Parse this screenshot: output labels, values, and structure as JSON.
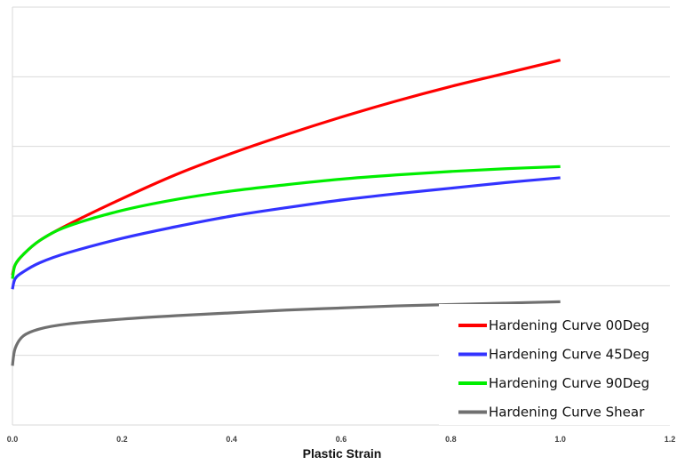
{
  "chart_data": {
    "type": "line",
    "title": "",
    "xlabel": "Plastic Strain",
    "ylabel": "",
    "xlim": [
      0.0,
      1.2
    ],
    "ylim": [
      0,
      6
    ],
    "x_ticks": [
      "0.0",
      "0.2",
      "0.4",
      "0.6",
      "0.8",
      "1.0",
      "1.2"
    ],
    "y_tick_labels_visible": false,
    "grid": "horizontal",
    "legend_position": "bottom-right",
    "series": [
      {
        "name": "Hardening Curve 00Deg",
        "color": "#ff0000",
        "x": [
          0,
          0.005,
          0.02,
          0.05,
          0.1,
          0.2,
          0.3,
          0.4,
          0.5,
          0.6,
          0.7,
          0.8,
          0.9,
          1.0
        ],
        "y": [
          2.15,
          2.3,
          2.45,
          2.65,
          2.87,
          3.25,
          3.6,
          3.9,
          4.17,
          4.42,
          4.65,
          4.86,
          5.05,
          5.24
        ]
      },
      {
        "name": "Hardening Curve 45Deg",
        "color": "#3333ff",
        "x": [
          0,
          0.005,
          0.02,
          0.05,
          0.1,
          0.2,
          0.3,
          0.4,
          0.5,
          0.6,
          0.7,
          0.8,
          0.9,
          1.0
        ],
        "y": [
          1.95,
          2.1,
          2.2,
          2.33,
          2.47,
          2.68,
          2.85,
          3.0,
          3.12,
          3.23,
          3.32,
          3.4,
          3.48,
          3.55
        ]
      },
      {
        "name": "Hardening Curve 90Deg",
        "color": "#00ee00",
        "x": [
          0,
          0.005,
          0.02,
          0.05,
          0.1,
          0.2,
          0.3,
          0.4,
          0.5,
          0.6,
          0.7,
          0.8,
          0.9,
          1.0
        ],
        "y": [
          2.1,
          2.3,
          2.45,
          2.65,
          2.85,
          3.08,
          3.24,
          3.36,
          3.45,
          3.53,
          3.59,
          3.64,
          3.68,
          3.71
        ]
      },
      {
        "name": "Hardening Curve Shear",
        "color": "#707070",
        "x": [
          0,
          0.005,
          0.02,
          0.05,
          0.1,
          0.2,
          0.3,
          0.4,
          0.5,
          0.6,
          0.7,
          0.8,
          0.9,
          1.0
        ],
        "y": [
          0.85,
          1.1,
          1.28,
          1.38,
          1.45,
          1.52,
          1.57,
          1.61,
          1.65,
          1.68,
          1.71,
          1.73,
          1.75,
          1.77
        ]
      }
    ]
  }
}
